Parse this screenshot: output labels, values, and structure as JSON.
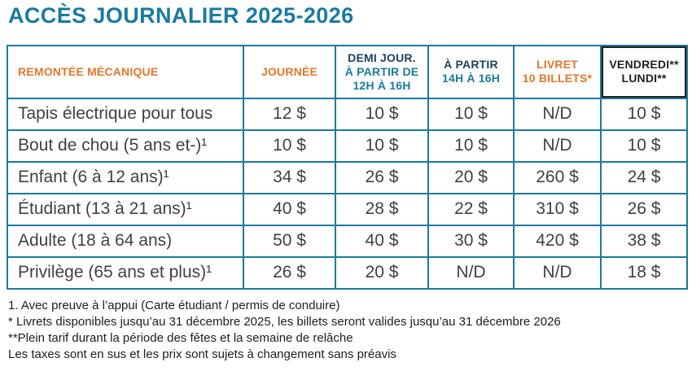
{
  "title": "ACCÈS JOURNALIER 2025-2026",
  "colors": {
    "teal": "#1b7a9e",
    "orange": "#e2762d",
    "navy": "#21425f",
    "black": "#231f20",
    "body_text": "#414042"
  },
  "table": {
    "headers": [
      {
        "lines": [
          "REMONTÉE MÉCANIQUE"
        ]
      },
      {
        "lines": [
          "JOURNÉE"
        ]
      },
      {
        "lines": [
          "DEMI JOUR.",
          "À PARTIR DE",
          "12H À 16H"
        ]
      },
      {
        "lines": [
          "À PARTIR",
          "14H À 16H"
        ]
      },
      {
        "lines": [
          "LIVRET",
          "10 BILLETS*"
        ]
      },
      {
        "lines": [
          "VENDREDI**",
          "LUNDI**"
        ]
      }
    ],
    "rows": [
      {
        "label": "Tapis électrique pour tous",
        "values": [
          "12 $",
          "10 $",
          "10 $",
          "N/D",
          "10 $"
        ]
      },
      {
        "label": "Bout de chou (5 ans et-)¹",
        "values": [
          "10 $",
          "10 $",
          "10 $",
          "N/D",
          "10 $"
        ]
      },
      {
        "label": "Enfant (6 à 12 ans)¹",
        "values": [
          "34 $",
          "26 $",
          "20 $",
          "260 $",
          "24 $"
        ]
      },
      {
        "label": "Étudiant (13 à 21 ans)¹",
        "values": [
          "40 $",
          "28 $",
          "22 $",
          "310 $",
          "26 $"
        ]
      },
      {
        "label": "Adulte (18 à 64 ans)",
        "values": [
          "50 $",
          "40 $",
          "30 $",
          "420 $",
          "38 $"
        ]
      },
      {
        "label": "Privilège (65 ans et plus)¹",
        "values": [
          "26 $",
          "20 $",
          "N/D",
          "N/D",
          "18 $"
        ]
      }
    ]
  },
  "footnotes": [
    "1. Avec preuve à l’appui (Carte étudiant / permis de conduire)",
    "* Livrets disponibles jusqu’au 31 décembre 2025, les billets seront valides jusqu’au 31 décembre 2026",
    "**Plein tarif durant la période des fêtes et la semaine de relâche",
    "Les taxes sont en sus et les prix sont sujets à changement sans préavis"
  ]
}
